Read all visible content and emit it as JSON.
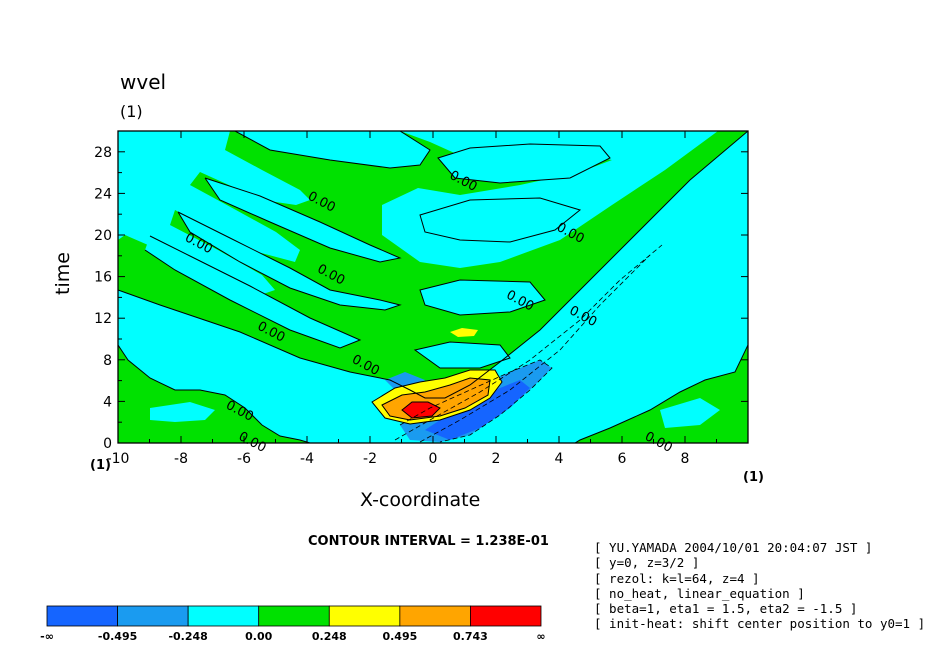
{
  "chart_data": {
    "type": "contour",
    "title": "wvel",
    "title_unit": "(1)",
    "xlabel": "X-coordinate",
    "ylabel": "time",
    "xlim": [
      -10,
      10
    ],
    "ylim": [
      0,
      30
    ],
    "x_unit_left": "(1)",
    "x_unit_right": "(1)",
    "xticks": [
      -10,
      -8,
      -6,
      -4,
      -2,
      0,
      2,
      4,
      6,
      8
    ],
    "xtick_labels": [
      "-10",
      "-8",
      "-6",
      "-4",
      "-2",
      "0",
      "2",
      "4",
      "6",
      "8"
    ],
    "yticks": [
      0,
      4,
      8,
      12,
      16,
      20,
      24,
      28
    ],
    "ytick_labels": [
      "0",
      "4",
      "8",
      "12",
      "16",
      "20",
      "24",
      "28"
    ],
    "contour_interval_text": "CONTOUR INTERVAL = 1.238E-01",
    "contour_labels": [
      {
        "text": "0.00",
        "x": -7.9,
        "y": 19.5
      },
      {
        "text": "0.00",
        "x": -5.6,
        "y": 11.0
      },
      {
        "text": "0.00",
        "x": -3.7,
        "y": 16.5
      },
      {
        "text": "0.00",
        "x": -4.0,
        "y": 23.5
      },
      {
        "text": "0.00",
        "x": 0.5,
        "y": 25.5
      },
      {
        "text": "0.00",
        "x": 3.9,
        "y": 20.5
      },
      {
        "text": "0.00",
        "x": 2.3,
        "y": 14.0
      },
      {
        "text": "0.00",
        "x": 4.3,
        "y": 12.5
      },
      {
        "text": "0.00",
        "x": -2.6,
        "y": 7.8
      },
      {
        "text": "0.00",
        "x": -6.6,
        "y": 3.4
      },
      {
        "text": "0.00",
        "x": -6.2,
        "y": 0.4
      },
      {
        "text": "0.00",
        "x": 6.7,
        "y": 0.4
      }
    ],
    "colorbar": {
      "labels": [
        "-∞",
        "-0.495",
        "-0.248",
        "0.00",
        "0.248",
        "0.495",
        "0.743",
        "∞"
      ],
      "colors": [
        "#1565ff",
        "#1a9bf0",
        "#00ffff",
        "#00e100",
        "#ffff00",
        "#ffa500",
        "#ff0000"
      ]
    },
    "grid": false
  },
  "info_lines": [
    "[ YU.YAMADA 2004/10/01 20:04:07 JST ]",
    "[ y=0, z=3/2 ]",
    "[ rezol: k=l=64, z=4 ]",
    "[ no_heat, linear_equation ]",
    "[ beta=1, eta1 = 1.5, eta2 = -1.5 ]",
    "[ init-heat: shift center position to y0=1 ]"
  ]
}
